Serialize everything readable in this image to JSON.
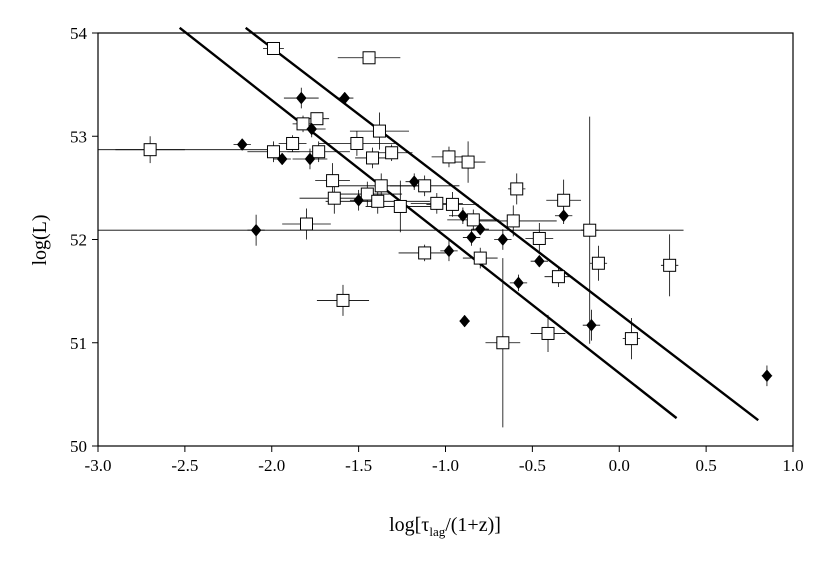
{
  "chart_data": {
    "type": "scatter",
    "title": "",
    "xlabel": {
      "prefix": "log[τ",
      "sub": "lag",
      "suffix": "/(1+z)]"
    },
    "ylabel": "log(L)",
    "xlim": [
      -3.0,
      1.0
    ],
    "ylim": [
      50,
      54
    ],
    "x_ticks": [
      -3.0,
      -2.5,
      -2.0,
      -1.5,
      -1.0,
      -0.5,
      0.0,
      0.5,
      1.0
    ],
    "x_tick_labels": [
      "-3.0",
      "-2.5",
      "-2.0",
      "-1.5",
      "-1.0",
      "-0.5",
      "0.0",
      "0.5",
      "1.0"
    ],
    "y_ticks": [
      50,
      51,
      52,
      53,
      54
    ],
    "y_tick_labels": [
      "50",
      "51",
      "52",
      "53",
      "54"
    ],
    "grid": false,
    "legend": null,
    "colors": {
      "ink": "#000000",
      "background": "#ffffff",
      "open_marker_fill": "#ffffff"
    },
    "series": [
      {
        "marker": "open-square",
        "points": [
          {
            "x": -2.7,
            "y": 52.87,
            "xerr": 0.2,
            "yerr": 0.13
          },
          {
            "x": -1.99,
            "y": 53.85,
            "xerr": 0.06,
            "yerr": 0.05
          },
          {
            "x": -1.99,
            "y": 52.85,
            "xerr": 0.15,
            "yerr": 0.1
          },
          {
            "x": -1.88,
            "y": 52.93,
            "xerr": 0.08,
            "yerr": 0.08
          },
          {
            "x": -1.82,
            "y": 53.12,
            "xerr": 0.06,
            "yerr": 0.08
          },
          {
            "x": -1.74,
            "y": 53.17,
            "xerr": 0.07,
            "yerr": 0.06
          },
          {
            "x": -1.73,
            "y": 52.85,
            "xerr": 0.18,
            "yerr": 0.1
          },
          {
            "x": -1.8,
            "y": 52.15,
            "xerr": 0.14,
            "yerr": 0.15
          },
          {
            "x": -1.65,
            "y": 52.57,
            "xerr": 0.1,
            "yerr": 0.17
          },
          {
            "x": -1.64,
            "y": 52.4,
            "xerr": 0.2,
            "yerr": 0.15
          },
          {
            "x": -1.59,
            "y": 51.41,
            "xerr": 0.15,
            "yerr": 0.15
          },
          {
            "x": -1.51,
            "y": 52.93,
            "xerr": 0.22,
            "yerr": 0.12
          },
          {
            "x": -1.44,
            "y": 53.76,
            "xerr": 0.18,
            "yerr": 0.06
          },
          {
            "x": -1.45,
            "y": 52.44,
            "xerr": 0.2,
            "yerr": 0.12
          },
          {
            "x": -1.42,
            "y": 52.79,
            "xerr": 0.1,
            "yerr": 0.1
          },
          {
            "x": -1.38,
            "y": 53.05,
            "xerr": 0.17,
            "yerr": 0.18
          },
          {
            "x": -1.37,
            "y": 52.52,
            "xerr": 0.25,
            "yerr": 0.12
          },
          {
            "x": -1.39,
            "y": 52.37,
            "xerr": 0.3,
            "yerr": 0.12
          },
          {
            "x": -1.31,
            "y": 52.84,
            "xerr": 0.12,
            "yerr": 0.08
          },
          {
            "x": -1.26,
            "y": 52.32,
            "xerr": 0.2,
            "yerr": 0.25
          },
          {
            "x": -1.12,
            "y": 52.52,
            "xerr": 0.2,
            "yerr": 0.1
          },
          {
            "x": -1.12,
            "y": 51.87,
            "xerr": 0.15,
            "yerr": 0.08
          },
          {
            "x": -1.05,
            "y": 52.35,
            "xerr": 0.15,
            "yerr": 0.1
          },
          {
            "x": -0.98,
            "y": 52.8,
            "xerr": 0.1,
            "yerr": 0.1
          },
          {
            "x": -0.96,
            "y": 52.34,
            "xerr": 0.15,
            "yerr": 0.12
          },
          {
            "x": -0.87,
            "y": 52.75,
            "xerr": 0.1,
            "yerr": 0.2
          },
          {
            "x": -0.84,
            "y": 52.19,
            "xerr": 0.15,
            "yerr": 0.1
          },
          {
            "x": -0.8,
            "y": 51.82,
            "xerr": 0.1,
            "yerr": 0.1
          },
          {
            "x": -0.67,
            "y": 51.0,
            "xerr": 0.1,
            "yerr": 0.82
          },
          {
            "x": -0.61,
            "y": 52.18,
            "xerr": 0.25,
            "yerr": 0.15
          },
          {
            "x": -0.59,
            "y": 52.49,
            "xerr": 0.05,
            "yerr": 0.15
          },
          {
            "x": -0.46,
            "y": 52.01,
            "xerr": 0.08,
            "yerr": 0.15
          },
          {
            "x": -0.41,
            "y": 51.09,
            "xerr": 0.1,
            "yerr": 0.18
          },
          {
            "x": -0.35,
            "y": 51.64,
            "xerr": 0.08,
            "yerr": 0.1
          },
          {
            "x": -0.32,
            "y": 52.38,
            "xerr": 0.1,
            "yerr": 0.2
          },
          {
            "x": -0.17,
            "y": 52.09,
            "xerr": 0.05,
            "yerr": 1.1
          },
          {
            "x": -0.12,
            "y": 51.77,
            "xerr": 0.05,
            "yerr": 0.17
          },
          {
            "x": 0.07,
            "y": 51.04,
            "xerr": 0.05,
            "yerr": 0.2
          },
          {
            "x": 0.29,
            "y": 51.75,
            "xerr": 0.05,
            "yerr": 0.3
          }
        ]
      },
      {
        "marker": "filled-diamond",
        "points": [
          {
            "x": -2.17,
            "y": 52.92,
            "xerr": 0.05,
            "yerr": 0.05
          },
          {
            "x": -2.09,
            "y": 52.09,
            "xerr": 0.05,
            "yerr": 0.15
          },
          {
            "x": -1.94,
            "y": 52.78,
            "xerr": 0.05,
            "yerr": 0.05
          },
          {
            "x": -1.83,
            "y": 53.37,
            "xerr": 0.1,
            "yerr": 0.1
          },
          {
            "x": -1.77,
            "y": 53.07,
            "xerr": 0.08,
            "yerr": 0.08
          },
          {
            "x": -1.78,
            "y": 52.78,
            "xerr": 0.1,
            "yerr": 0.1
          },
          {
            "x": -1.58,
            "y": 53.37,
            "xerr": 0.05,
            "yerr": 0.05
          },
          {
            "x": -1.5,
            "y": 52.38,
            "xerr": 0.05,
            "yerr": 0.1
          },
          {
            "x": -1.18,
            "y": 52.56,
            "xerr": 0.05,
            "yerr": 0.08
          },
          {
            "x": -0.98,
            "y": 51.89,
            "xerr": 0.05,
            "yerr": 0.1
          },
          {
            "x": -0.9,
            "y": 52.23,
            "xerr": 0.08,
            "yerr": 0.08
          },
          {
            "x": -0.89,
            "y": 51.21,
            "xerr": 0.03,
            "yerr": 0.03
          },
          {
            "x": -0.85,
            "y": 52.02,
            "xerr": 0.05,
            "yerr": 0.08
          },
          {
            "x": -0.8,
            "y": 52.1,
            "xerr": 0.05,
            "yerr": 0.05
          },
          {
            "x": -0.67,
            "y": 52.0,
            "xerr": 0.05,
            "yerr": 0.1
          },
          {
            "x": -0.58,
            "y": 51.58,
            "xerr": 0.05,
            "yerr": 0.08
          },
          {
            "x": -0.46,
            "y": 51.79,
            "xerr": 0.05,
            "yerr": 0.05
          },
          {
            "x": -0.32,
            "y": 52.23,
            "xerr": 0.05,
            "yerr": 0.08
          },
          {
            "x": -0.16,
            "y": 51.17,
            "xerr": 0.05,
            "yerr": 0.15
          },
          {
            "x": 0.85,
            "y": 50.68,
            "xerr": 0.03,
            "yerr": 0.1
          }
        ]
      }
    ],
    "horizontal_lines": [
      {
        "y": 52.87,
        "x_from": -3.0,
        "x_to": -2.0
      },
      {
        "y": 52.09,
        "x_from": -3.0,
        "x_to": 0.37
      }
    ],
    "fit_lines": [
      {
        "x1": -2.53,
        "y1": 54.05,
        "x2": 0.33,
        "y2": 50.27
      },
      {
        "x1": -2.15,
        "y1": 54.05,
        "x2": 0.8,
        "y2": 50.25
      }
    ]
  }
}
